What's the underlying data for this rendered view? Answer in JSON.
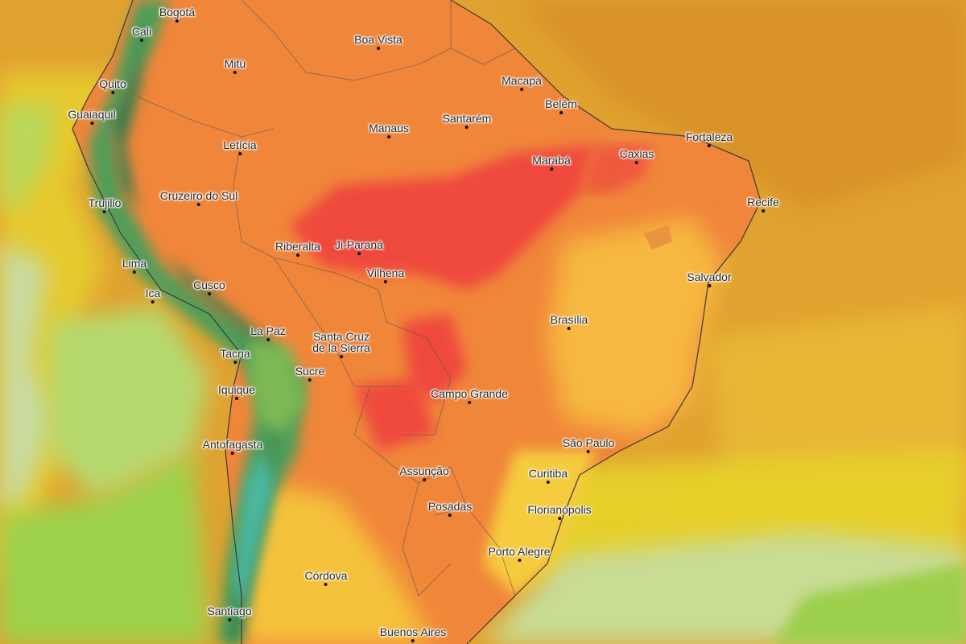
{
  "map": {
    "cities": [
      {
        "id": "bogota",
        "name": "Bogotá"
      },
      {
        "id": "cali",
        "name": "Cali"
      },
      {
        "id": "boa-vista",
        "name": "Boa Vista"
      },
      {
        "id": "mitu",
        "name": "Mitú"
      },
      {
        "id": "quito",
        "name": "Quito"
      },
      {
        "id": "macapa",
        "name": "Macapá"
      },
      {
        "id": "guaiaquil",
        "name": "Guaiaquil"
      },
      {
        "id": "belem",
        "name": "Belém"
      },
      {
        "id": "manaus",
        "name": "Manaus"
      },
      {
        "id": "santarem",
        "name": "Santarém"
      },
      {
        "id": "leticia",
        "name": "Letícia"
      },
      {
        "id": "fortaleza",
        "name": "Fortaleza"
      },
      {
        "id": "caxias",
        "name": "Caxias"
      },
      {
        "id": "maraba",
        "name": "Marabá"
      },
      {
        "id": "cruzeiro-do-sul",
        "name": "Cruzeiro do Sul"
      },
      {
        "id": "trujillo",
        "name": "Trujillo"
      },
      {
        "id": "recife",
        "name": "Recife"
      },
      {
        "id": "riberalta",
        "name": "Riberalta"
      },
      {
        "id": "ji-parana",
        "name": "Ji-Paraná"
      },
      {
        "id": "lima",
        "name": "Lima"
      },
      {
        "id": "vilhena",
        "name": "Vilhena"
      },
      {
        "id": "salvador",
        "name": "Salvador"
      },
      {
        "id": "cusco",
        "name": "Cusco"
      },
      {
        "id": "ica",
        "name": "Ica"
      },
      {
        "id": "brasilia",
        "name": "Brasília"
      },
      {
        "id": "la-paz",
        "name": "La Paz"
      },
      {
        "id": "santa-cruz",
        "name": "Santa Cruz\nde la Sierra"
      },
      {
        "id": "tacna",
        "name": "Tacna"
      },
      {
        "id": "sucre",
        "name": "Sucre"
      },
      {
        "id": "iquique",
        "name": "Iquique"
      },
      {
        "id": "campo-grande",
        "name": "Campo Grande"
      },
      {
        "id": "antofagasta",
        "name": "Antofagasta"
      },
      {
        "id": "sao-paulo",
        "name": "São Paulo"
      },
      {
        "id": "assuncao",
        "name": "Assunção"
      },
      {
        "id": "curitiba",
        "name": "Curitiba"
      },
      {
        "id": "posadas",
        "name": "Posadas"
      },
      {
        "id": "florianopolis",
        "name": "Florianópolis"
      },
      {
        "id": "porto-alegre",
        "name": "Porto Alegre"
      },
      {
        "id": "cordova",
        "name": "Córdova"
      },
      {
        "id": "santiago",
        "name": "Santiago"
      },
      {
        "id": "buenos-aires",
        "name": "Buenos Aires"
      }
    ]
  },
  "colors": {
    "ocean_hot": "#e0a230",
    "ocean_warm": "#eab83a",
    "ocean_yellow": "#e3d12b",
    "ocean_green_pale": "#c3d98a",
    "ocean_green": "#9bd04a",
    "land_orange": "#f0863a",
    "land_red": "#f04440",
    "land_yellow": "#f7c840",
    "andes_green": "#4f9e5a",
    "andes_dark": "#2f7a4e",
    "andes_teal": "#4cb8a0"
  }
}
